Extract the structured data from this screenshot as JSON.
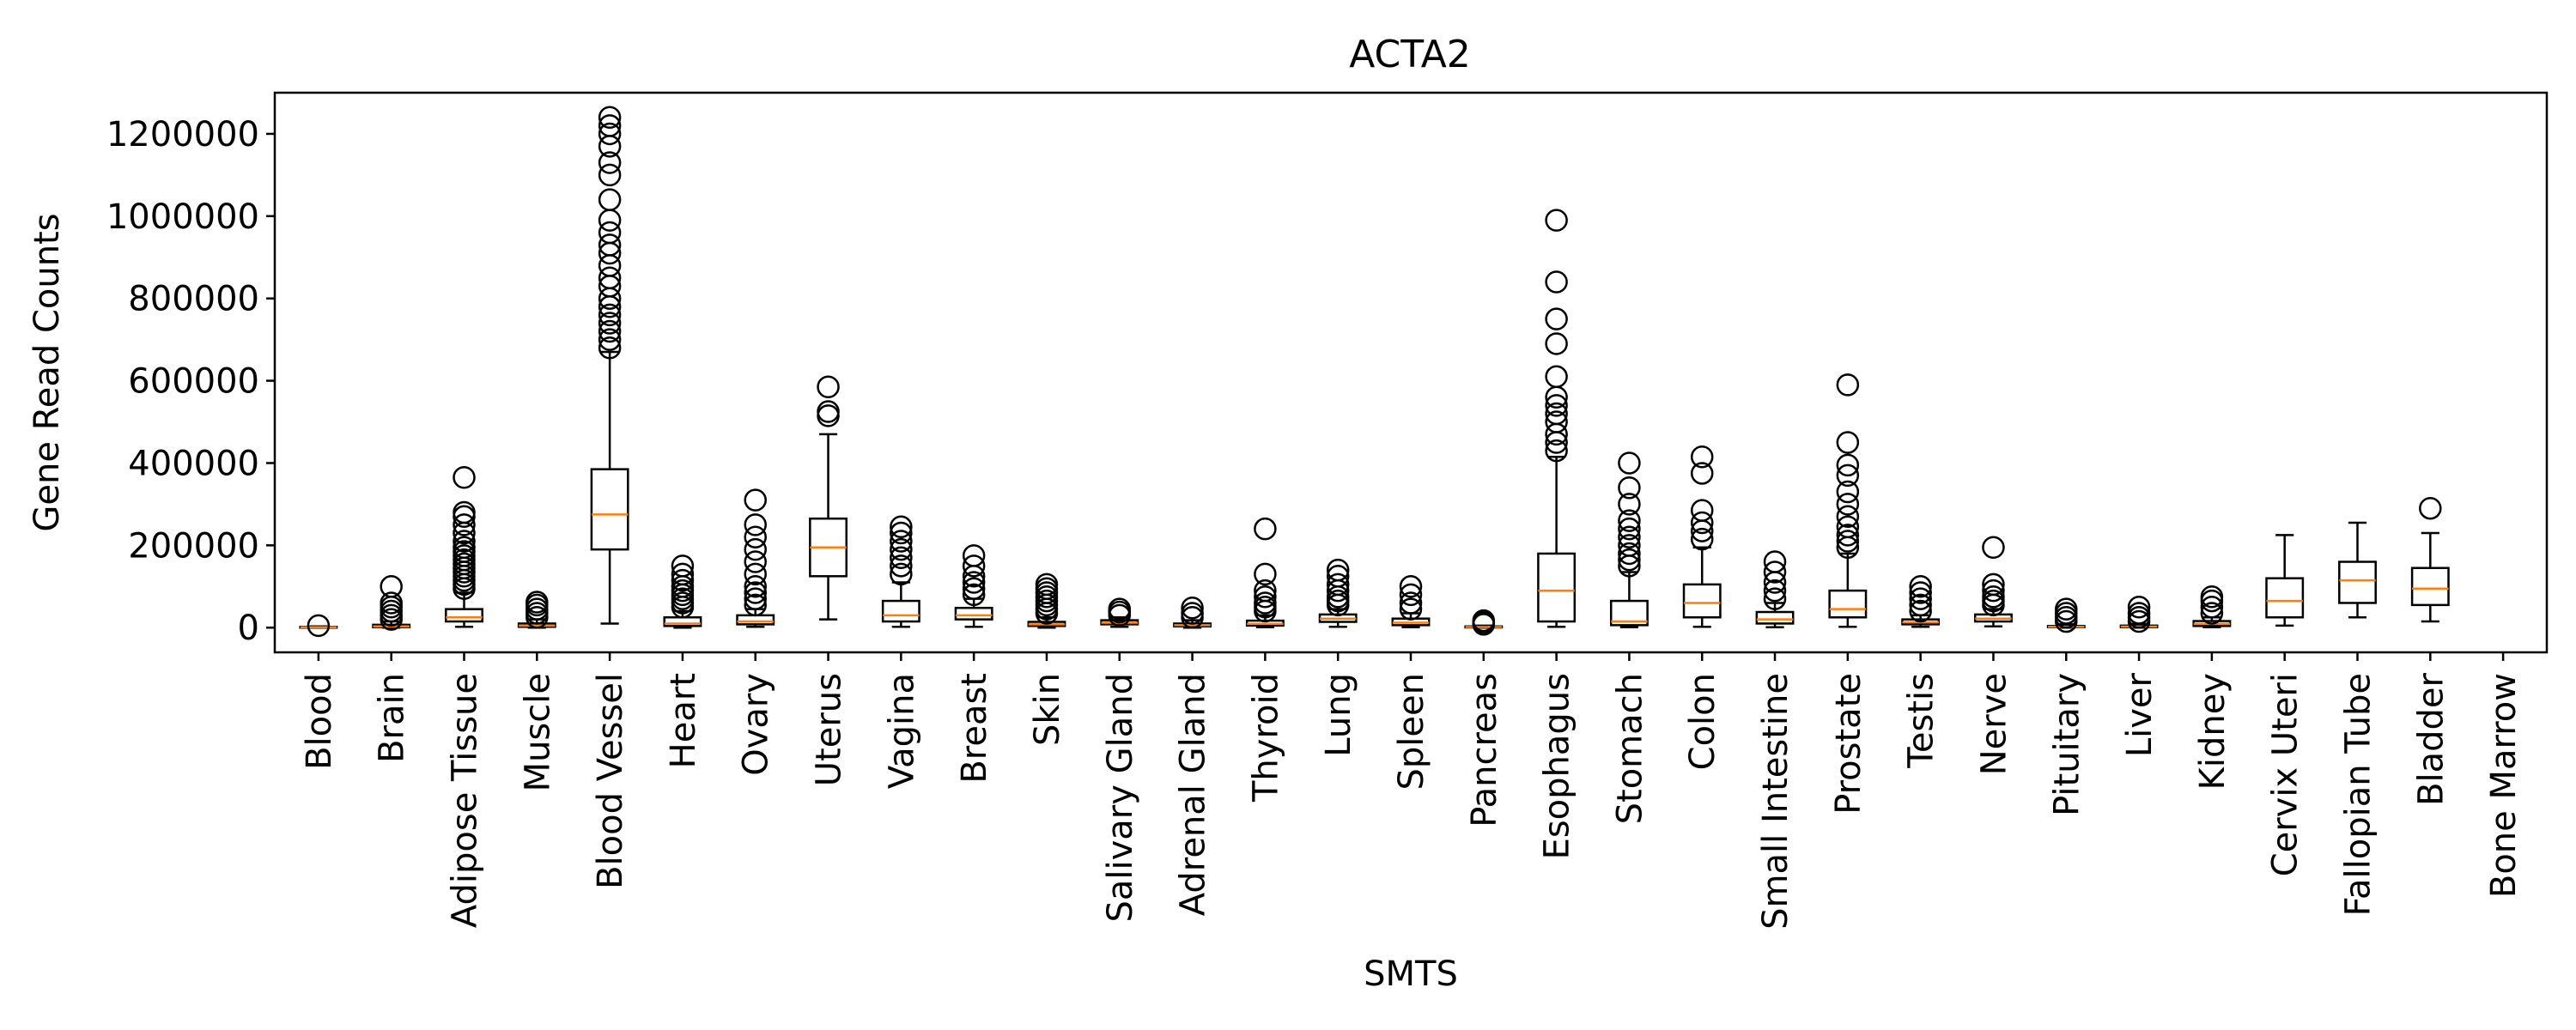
{
  "chart_data": {
    "type": "box",
    "title": "ACTA2",
    "xlabel": "SMTS",
    "ylabel": "Gene Read Counts",
    "ylim": [
      -60000,
      1300000
    ],
    "yticks": [
      0,
      200000,
      400000,
      600000,
      800000,
      1000000,
      1200000
    ],
    "ytick_labels": [
      "0",
      "200000",
      "400000",
      "600000",
      "800000",
      "1000000",
      "1200000"
    ],
    "grid": false,
    "legend": "none",
    "colors": {
      "box": "#000000",
      "median": "#ff7f0e",
      "background": "#ffffff"
    },
    "boxes": [
      {
        "category": "Blood",
        "whisker_low": 0,
        "q1": 0,
        "median": 1000,
        "q3": 2000,
        "whisker_high": 3000,
        "outliers": [
          5000
        ]
      },
      {
        "category": "Brain",
        "whisker_low": 0,
        "q1": 1000,
        "median": 3000,
        "q3": 7000,
        "whisker_high": 15000,
        "outliers": [
          20000,
          30000,
          40000,
          50000,
          60000,
          100000
        ]
      },
      {
        "category": "Adipose Tissue",
        "whisker_low": 2000,
        "q1": 15000,
        "median": 25000,
        "q3": 45000,
        "whisker_high": 85000,
        "outliers": [
          95000,
          105000,
          115000,
          125000,
          135000,
          145000,
          155000,
          165000,
          175000,
          185000,
          195000,
          210000,
          230000,
          250000,
          270000,
          280000,
          365000
        ]
      },
      {
        "category": "Muscle",
        "whisker_low": 0,
        "q1": 2000,
        "median": 5000,
        "q3": 10000,
        "whisker_high": 20000,
        "outliers": [
          25000,
          35000,
          45000,
          55000,
          62000
        ]
      },
      {
        "category": "Blood Vessel",
        "whisker_low": 10000,
        "q1": 190000,
        "median": 275000,
        "q3": 385000,
        "whisker_high": 670000,
        "outliers": [
          680000,
          700000,
          720000,
          740000,
          760000,
          780000,
          800000,
          830000,
          850000,
          880000,
          910000,
          930000,
          960000,
          990000,
          1040000,
          1100000,
          1130000,
          1170000,
          1200000,
          1220000,
          1240000
        ]
      },
      {
        "category": "Heart",
        "whisker_low": 0,
        "q1": 4000,
        "median": 10000,
        "q3": 25000,
        "whisker_high": 40000,
        "outliers": [
          50000,
          60000,
          70000,
          80000,
          90000,
          100000,
          115000,
          130000,
          150000
        ]
      },
      {
        "category": "Ovary",
        "whisker_low": 2000,
        "q1": 8000,
        "median": 15000,
        "q3": 30000,
        "whisker_high": 45000,
        "outliers": [
          55000,
          70000,
          85000,
          100000,
          130000,
          160000,
          190000,
          220000,
          250000,
          310000
        ]
      },
      {
        "category": "Uterus",
        "whisker_low": 20000,
        "q1": 125000,
        "median": 195000,
        "q3": 265000,
        "whisker_high": 470000,
        "outliers": [
          515000,
          525000,
          585000
        ]
      },
      {
        "category": "Vagina",
        "whisker_low": 2000,
        "q1": 15000,
        "median": 30000,
        "q3": 65000,
        "whisker_high": 110000,
        "outliers": [
          130000,
          150000,
          170000,
          190000,
          210000,
          230000,
          245000
        ]
      },
      {
        "category": "Breast",
        "whisker_low": 2000,
        "q1": 20000,
        "median": 30000,
        "q3": 48000,
        "whisker_high": 70000,
        "outliers": [
          80000,
          95000,
          110000,
          125000,
          150000,
          175000
        ]
      },
      {
        "category": "Skin",
        "whisker_low": 0,
        "q1": 4000,
        "median": 8000,
        "q3": 14000,
        "whisker_high": 25000,
        "outliers": [
          35000,
          45000,
          55000,
          65000,
          75000,
          85000,
          95000,
          105000
        ]
      },
      {
        "category": "Salivary Gland",
        "whisker_low": 2000,
        "q1": 8000,
        "median": 12000,
        "q3": 18000,
        "whisker_high": 25000,
        "outliers": [
          30000,
          38000,
          45000
        ]
      },
      {
        "category": "Adrenal Gland",
        "whisker_low": 0,
        "q1": 3000,
        "median": 6000,
        "q3": 10000,
        "whisker_high": 18000,
        "outliers": [
          25000,
          35000,
          48000
        ]
      },
      {
        "category": "Thyroid",
        "whisker_low": 1000,
        "q1": 5000,
        "median": 9000,
        "q3": 17000,
        "whisker_high": 30000,
        "outliers": [
          40000,
          50000,
          60000,
          75000,
          90000,
          130000,
          240000
        ]
      },
      {
        "category": "Lung",
        "whisker_low": 2000,
        "q1": 14000,
        "median": 22000,
        "q3": 32000,
        "whisker_high": 45000,
        "outliers": [
          55000,
          65000,
          75000,
          90000,
          105000,
          125000,
          140000
        ]
      },
      {
        "category": "Spleen",
        "whisker_low": 1000,
        "q1": 6000,
        "median": 12000,
        "q3": 22000,
        "whisker_high": 35000,
        "outliers": [
          45000,
          60000,
          80000,
          100000
        ]
      },
      {
        "category": "Pancreas",
        "whisker_low": 0,
        "q1": 500,
        "median": 1500,
        "q3": 3000,
        "whisker_high": 5000,
        "outliers": [
          8000,
          12000,
          17000
        ]
      },
      {
        "category": "Esophagus",
        "whisker_low": 2000,
        "q1": 15000,
        "median": 90000,
        "q3": 180000,
        "whisker_high": 415000,
        "outliers": [
          430000,
          450000,
          470000,
          500000,
          520000,
          540000,
          560000,
          610000,
          690000,
          750000,
          840000,
          990000
        ]
      },
      {
        "category": "Stomach",
        "whisker_low": 1000,
        "q1": 6000,
        "median": 15000,
        "q3": 65000,
        "whisker_high": 135000,
        "outliers": [
          150000,
          165000,
          180000,
          200000,
          220000,
          240000,
          260000,
          300000,
          340000,
          400000
        ]
      },
      {
        "category": "Colon",
        "whisker_low": 2000,
        "q1": 25000,
        "median": 60000,
        "q3": 105000,
        "whisker_high": 195000,
        "outliers": [
          215000,
          235000,
          255000,
          285000,
          375000,
          415000
        ]
      },
      {
        "category": "Small Intestine",
        "whisker_low": 1000,
        "q1": 10000,
        "median": 20000,
        "q3": 38000,
        "whisker_high": 60000,
        "outliers": [
          70000,
          90000,
          110000,
          135000,
          160000
        ]
      },
      {
        "category": "Prostate",
        "whisker_low": 2000,
        "q1": 25000,
        "median": 45000,
        "q3": 90000,
        "whisker_high": 180000,
        "outliers": [
          195000,
          210000,
          225000,
          245000,
          270000,
          300000,
          330000,
          370000,
          395000,
          450000,
          590000
        ]
      },
      {
        "category": "Testis",
        "whisker_low": 2000,
        "q1": 8000,
        "median": 13000,
        "q3": 20000,
        "whisker_high": 30000,
        "outliers": [
          40000,
          55000,
          70000,
          85000,
          100000
        ]
      },
      {
        "category": "Nerve",
        "whisker_low": 3000,
        "q1": 15000,
        "median": 22000,
        "q3": 32000,
        "whisker_high": 45000,
        "outliers": [
          55000,
          65000,
          75000,
          90000,
          105000,
          195000
        ]
      },
      {
        "category": "Pituitary",
        "whisker_low": 0,
        "q1": 1000,
        "median": 2000,
        "q3": 4000,
        "whisker_high": 8000,
        "outliers": [
          15000,
          25000,
          35000,
          45000
        ]
      },
      {
        "category": "Liver",
        "whisker_low": 0,
        "q1": 1000,
        "median": 2500,
        "q3": 5000,
        "whisker_high": 9000,
        "outliers": [
          15000,
          25000,
          35000,
          50000
        ]
      },
      {
        "category": "Kidney",
        "whisker_low": 1000,
        "q1": 4000,
        "median": 9000,
        "q3": 16000,
        "whisker_high": 25000,
        "outliers": [
          35000,
          50000,
          65000,
          75000
        ]
      },
      {
        "category": "Cervix Uteri",
        "whisker_low": 5000,
        "q1": 25000,
        "median": 65000,
        "q3": 120000,
        "whisker_high": 225000,
        "outliers": []
      },
      {
        "category": "Fallopian Tube",
        "whisker_low": 25000,
        "q1": 60000,
        "median": 115000,
        "q3": 160000,
        "whisker_high": 255000,
        "outliers": []
      },
      {
        "category": "Bladder",
        "whisker_low": 15000,
        "q1": 55000,
        "median": 95000,
        "q3": 145000,
        "whisker_high": 230000,
        "outliers": [
          290000
        ]
      },
      {
        "category": "Bone Marrow",
        "whisker_low": null,
        "q1": null,
        "median": null,
        "q3": null,
        "whisker_high": null,
        "outliers": []
      }
    ]
  }
}
